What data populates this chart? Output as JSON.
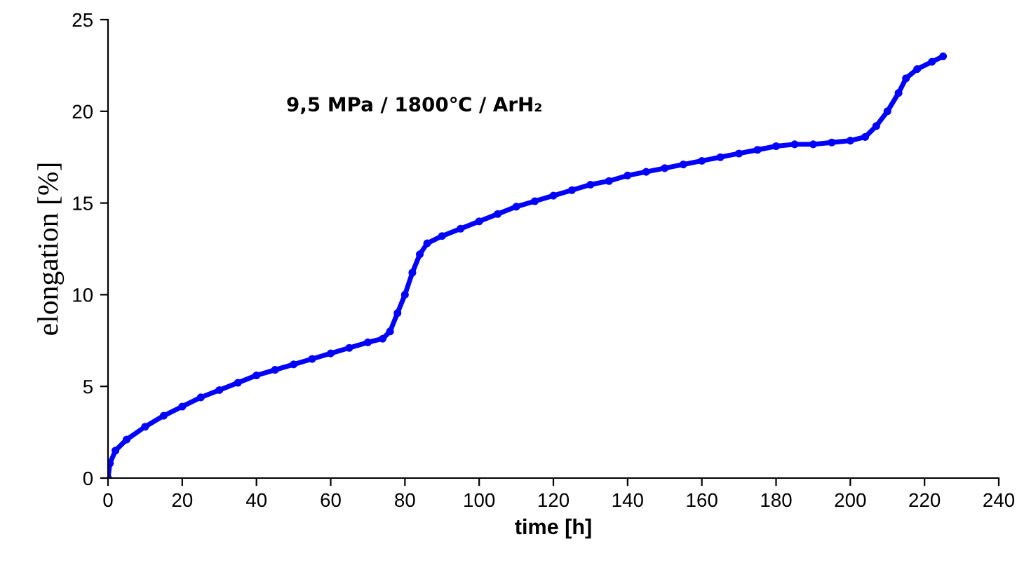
{
  "chart_data": {
    "type": "line",
    "xlabel": "time [h]",
    "ylabel": "elongation [%]",
    "annotations": [
      "9,5 MPa / 1800℃ / ArH₂"
    ],
    "x": [
      0,
      0.5,
      2,
      5,
      10,
      15,
      20,
      25,
      30,
      35,
      40,
      45,
      50,
      55,
      60,
      65,
      70,
      74,
      76,
      78,
      80,
      82,
      84,
      86,
      90,
      95,
      100,
      105,
      110,
      115,
      120,
      125,
      130,
      135,
      140,
      145,
      150,
      155,
      160,
      165,
      170,
      175,
      180,
      185,
      190,
      195,
      200,
      204,
      207,
      210,
      213,
      215,
      218,
      222,
      225
    ],
    "series": [
      {
        "color": "#0000ff",
        "values": [
          0,
          0.8,
          1.5,
          2.1,
          2.8,
          3.4,
          3.9,
          4.4,
          4.8,
          5.2,
          5.6,
          5.9,
          6.2,
          6.5,
          6.8,
          7.1,
          7.4,
          7.6,
          8.0,
          9.0,
          10.0,
          11.2,
          12.2,
          12.8,
          13.2,
          13.6,
          14.0,
          14.4,
          14.8,
          15.1,
          15.4,
          15.7,
          16.0,
          16.2,
          16.5,
          16.7,
          16.9,
          17.1,
          17.3,
          17.5,
          17.7,
          17.9,
          18.1,
          18.2,
          18.2,
          18.3,
          18.4,
          18.6,
          19.2,
          20.0,
          21.0,
          21.8,
          22.3,
          22.7,
          23.0
        ]
      }
    ],
    "xlim": [
      0,
      240
    ],
    "xticks": [
      0,
      20,
      40,
      60,
      80,
      100,
      120,
      140,
      160,
      180,
      200,
      220,
      240
    ],
    "ylim": [
      0,
      25
    ],
    "yticks": [
      0,
      5,
      10,
      15,
      20,
      25
    ],
    "marker": "circle",
    "line_style": "solid",
    "grid": false,
    "legend": false
  }
}
